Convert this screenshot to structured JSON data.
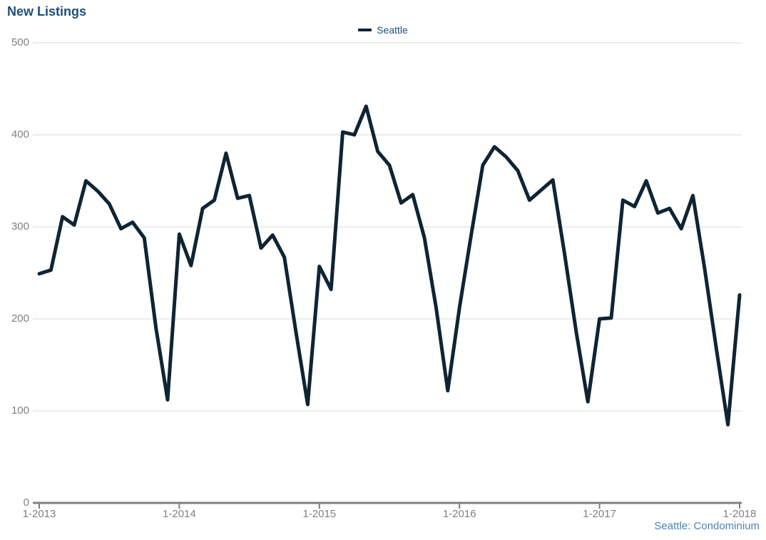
{
  "page": {
    "title": "New Listings",
    "footer": "Seattle: Condominium"
  },
  "legend": {
    "label": "Seattle"
  },
  "chart_data": {
    "type": "line",
    "title": "New Listings",
    "footer": "Seattle: Condominium",
    "legend_position": "top-center",
    "grid": "horizontal",
    "ylim": [
      0,
      500
    ],
    "y_ticks": [
      0,
      100,
      200,
      300,
      400,
      500
    ],
    "x_tick_labels": [
      "1-2013",
      "1-2014",
      "1-2015",
      "1-2016",
      "1-2017",
      "1-2018"
    ],
    "x_tick_indices": [
      0,
      12,
      24,
      36,
      48,
      60
    ],
    "x": [
      "1-2013",
      "2-2013",
      "3-2013",
      "4-2013",
      "5-2013",
      "6-2013",
      "7-2013",
      "8-2013",
      "9-2013",
      "10-2013",
      "11-2013",
      "12-2013",
      "1-2014",
      "2-2014",
      "3-2014",
      "4-2014",
      "5-2014",
      "6-2014",
      "7-2014",
      "8-2014",
      "9-2014",
      "10-2014",
      "11-2014",
      "12-2014",
      "1-2015",
      "2-2015",
      "3-2015",
      "4-2015",
      "5-2015",
      "6-2015",
      "7-2015",
      "8-2015",
      "9-2015",
      "10-2015",
      "11-2015",
      "12-2015",
      "1-2016",
      "2-2016",
      "3-2016",
      "4-2016",
      "5-2016",
      "6-2016",
      "7-2016",
      "8-2016",
      "9-2016",
      "10-2016",
      "11-2016",
      "12-2016",
      "1-2017",
      "2-2017",
      "3-2017",
      "4-2017",
      "5-2017",
      "6-2017",
      "7-2017",
      "8-2017",
      "9-2017",
      "10-2017",
      "11-2017",
      "12-2017",
      "1-2018"
    ],
    "series": [
      {
        "name": "Seattle",
        "values": [
          249,
          253,
          311,
          302,
          350,
          339,
          325,
          298,
          305,
          288,
          190,
          112,
          292,
          258,
          320,
          329,
          380,
          331,
          334,
          277,
          291,
          267,
          185,
          107,
          257,
          232,
          403,
          400,
          431,
          382,
          367,
          326,
          335,
          288,
          212,
          122,
          212,
          291,
          367,
          387,
          376,
          361,
          329,
          340,
          351,
          271,
          186,
          110,
          200,
          201,
          329,
          322,
          350,
          315,
          320,
          298,
          334,
          255,
          168,
          85,
          226
        ]
      }
    ],
    "colors": {
      "line": "#0f2433",
      "title": "#1f4e79",
      "legend_text": "#1f4e79",
      "axis_labels": "#808080",
      "gridline": "#d9d9d9",
      "axis_line": "#7f7f7f",
      "footer_text": "#4d82bc"
    }
  }
}
